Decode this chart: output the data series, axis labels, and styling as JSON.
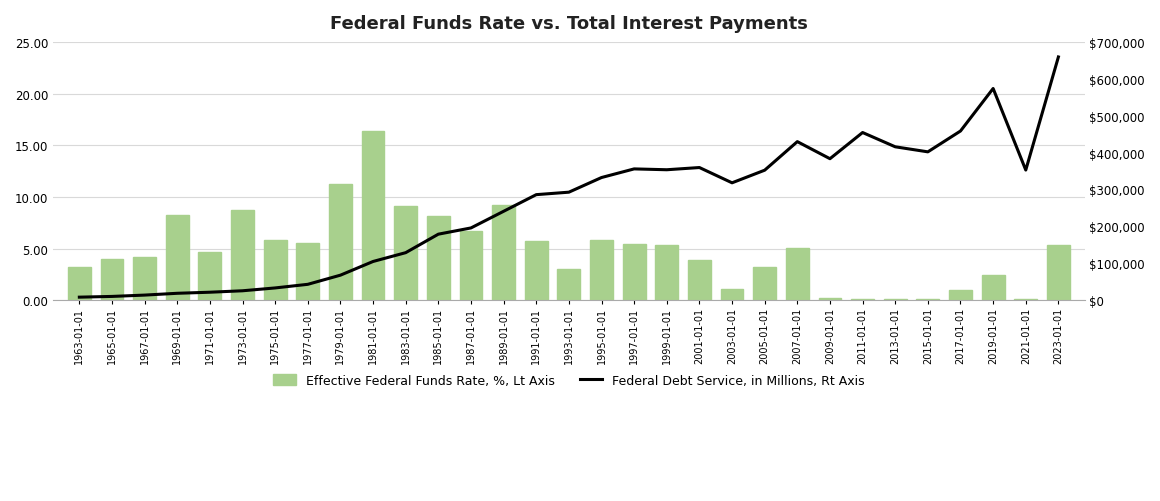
{
  "title": "Federal Funds Rate vs. Total Interest Payments",
  "left_label": "Effective Federal Funds Rate, %, Lt Axis",
  "right_label": "Federal Debt Service, in Millions, Rt Axis",
  "ylim_left": [
    0,
    25.0
  ],
  "ylim_right": [
    0,
    700000
  ],
  "yticks_left": [
    0,
    5.0,
    10.0,
    15.0,
    20.0,
    25.0
  ],
  "yticks_right": [
    0,
    100000,
    200000,
    300000,
    400000,
    500000,
    600000,
    700000
  ],
  "background_color": "#ffffff",
  "bar_color": "#a8d08d",
  "bar_edge_color": "#a8d08d",
  "line_color": "#000000",
  "grid_color": "#d9d9d9",
  "years": [
    "1963-01-01",
    "1965-01-01",
    "1967-01-01",
    "1969-01-01",
    "1971-01-01",
    "1973-01-01",
    "1975-01-01",
    "1977-01-01",
    "1979-01-01",
    "1981-01-01",
    "1983-01-01",
    "1985-01-01",
    "1987-01-01",
    "1989-01-01",
    "1991-01-01",
    "1993-01-01",
    "1995-01-01",
    "1997-01-01",
    "1999-01-01",
    "2001-01-01",
    "2003-01-01",
    "2005-01-01",
    "2007-01-01",
    "2009-01-01",
    "2011-01-01",
    "2013-01-01",
    "2015-01-01",
    "2017-01-01",
    "2019-01-01",
    "2021-01-01",
    "2023-01-01"
  ],
  "ffr": [
    3.18,
    3.99,
    4.22,
    8.2,
    4.67,
    8.73,
    5.82,
    5.54,
    11.2,
    16.38,
    9.09,
    8.1,
    6.66,
    9.21,
    5.69,
    3.02,
    5.83,
    5.46,
    5.35,
    3.88,
    1.13,
    3.22,
    5.02,
    0.24,
    0.1,
    0.09,
    0.13,
    1.0,
    2.4,
    0.08,
    5.33
  ],
  "debt_service": [
    8200,
    10200,
    13800,
    18700,
    21600,
    25500,
    33200,
    43000,
    67800,
    104900,
    128800,
    178900,
    195800,
    240900,
    286000,
    292700,
    332400,
    355800,
    353500,
    359500,
    318100,
    352300,
    429700,
    383400,
    454400,
    415700,
    402000,
    458500,
    573700,
    352700,
    659200
  ]
}
